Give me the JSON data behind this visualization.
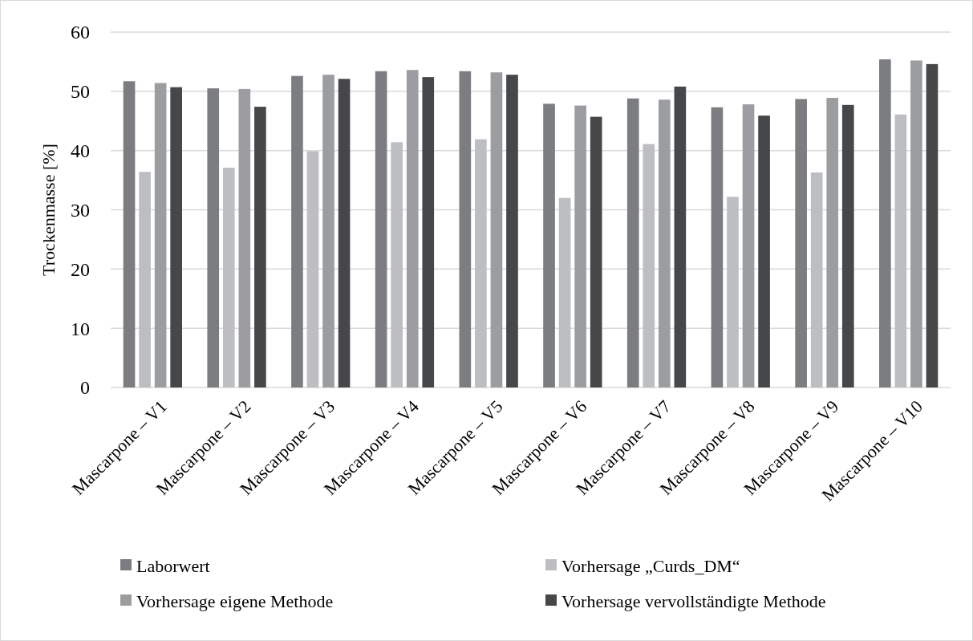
{
  "chart_data": {
    "type": "bar",
    "ylabel": "Trockenmasse [%]",
    "categories": [
      "Mascarpone – V1",
      "Mascarpone – V2",
      "Mascarpone – V3",
      "Mascarpone – V4",
      "Mascarpone – V5",
      "Mascarpone – V6",
      "Mascarpone – V7",
      "Mascarpone – V8",
      "Mascarpone – V9",
      "Mascarpone – V10"
    ],
    "series": [
      {
        "name": "Laborwert",
        "color": "#7c7d81",
        "values": [
          51.7,
          50.5,
          52.6,
          53.4,
          53.4,
          47.9,
          48.8,
          47.3,
          48.7,
          55.4
        ]
      },
      {
        "name": "Vorhersage „Curds_DM“",
        "color": "#bdbec1",
        "values": [
          36.4,
          37.1,
          39.9,
          41.4,
          41.9,
          32.0,
          41.1,
          32.2,
          36.3,
          46.1
        ]
      },
      {
        "name": "Vorhersage eigene Methode",
        "color": "#9c9da1",
        "values": [
          51.4,
          50.4,
          52.8,
          53.6,
          53.2,
          47.6,
          48.6,
          47.8,
          48.9,
          55.2
        ]
      },
      {
        "name": "Vorhersage vervollständigte Methode",
        "color": "#464749",
        "values": [
          50.7,
          47.4,
          52.1,
          52.4,
          52.8,
          45.7,
          50.8,
          45.9,
          47.7,
          54.6
        ]
      }
    ],
    "ylim": [
      0,
      60
    ],
    "yticks": [
      0,
      10,
      20,
      30,
      40,
      50,
      60
    ],
    "grid": "y",
    "legend": "bottom"
  }
}
